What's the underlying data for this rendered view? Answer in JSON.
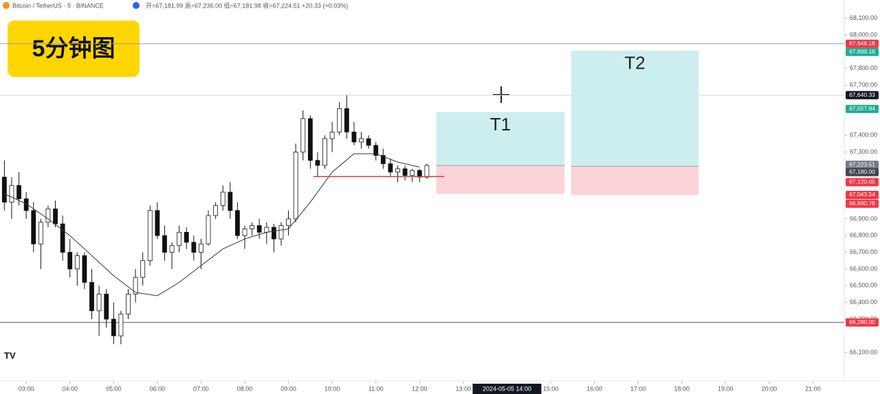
{
  "header": {
    "symbol": "Bitcoin / TetherUS · 5 · BINANCE",
    "ohlc": "开=67,181.99 高=67,236.00 低=67,181.98 收=67,224.51 +20.33 (+0.03%)",
    "badge": "5分钟图",
    "logo": "TV"
  },
  "chart_data": {
    "type": "candlestick",
    "up_color": "#ffffff",
    "down_color": "#111111",
    "xlim": [
      144,
      1303
    ],
    "ylim": [
      65930,
      68210
    ],
    "xticks": [
      {
        "value": 180,
        "label": "03:00"
      },
      {
        "value": 240,
        "label": "04:00"
      },
      {
        "value": 300,
        "label": "05:00"
      },
      {
        "value": 360,
        "label": "06:00"
      },
      {
        "value": 420,
        "label": "07:00"
      },
      {
        "value": 480,
        "label": "08:00"
      },
      {
        "value": 540,
        "label": "09:00"
      },
      {
        "value": 600,
        "label": "10:00"
      },
      {
        "value": 660,
        "label": "11:00"
      },
      {
        "value": 720,
        "label": "12:00"
      },
      {
        "value": 780,
        "label": "13:00"
      },
      {
        "value": 900,
        "label": "15:00"
      },
      {
        "value": 960,
        "label": "16:00"
      },
      {
        "value": 1020,
        "label": "17:00"
      },
      {
        "value": 1080,
        "label": "18:00"
      },
      {
        "value": 1140,
        "label": "19:00"
      },
      {
        "value": 1200,
        "label": "20:00"
      },
      {
        "value": 1260,
        "label": "21:00"
      }
    ],
    "crosshair_time": {
      "value": 840,
      "label": "2024-05-05 14:00"
    },
    "yticks": [
      {
        "value": 68100,
        "label": "68,100.00"
      },
      {
        "value": 68000,
        "label": "68,000.00"
      },
      {
        "value": 67800,
        "label": "67,800.00"
      },
      {
        "value": 67700,
        "label": "67,700.00"
      },
      {
        "value": 67400,
        "label": "67,400.00"
      },
      {
        "value": 67300,
        "label": "67,300.00"
      },
      {
        "value": 66900,
        "label": "66,900.00"
      },
      {
        "value": 66800,
        "label": "66,800.00"
      },
      {
        "value": 66700,
        "label": "66,700.00"
      },
      {
        "value": 66600,
        "label": "66,600.00"
      },
      {
        "value": 66500,
        "label": "66,500.00"
      },
      {
        "value": 66400,
        "label": "66,400.00"
      },
      {
        "value": 66300,
        "label": "66,300.00"
      },
      {
        "value": 66100,
        "label": "66,100.00"
      }
    ],
    "x": [
      150,
      160,
      170,
      180,
      190,
      200,
      210,
      220,
      230,
      240,
      250,
      260,
      270,
      280,
      290,
      300,
      310,
      320,
      330,
      340,
      350,
      360,
      370,
      380,
      390,
      400,
      410,
      420,
      430,
      440,
      450,
      460,
      470,
      480,
      490,
      500,
      510,
      520,
      530,
      540,
      550,
      560,
      570,
      580,
      590,
      600,
      610,
      620,
      630,
      640,
      650,
      660,
      670,
      680,
      690,
      700,
      710,
      720,
      730
    ],
    "open": [
      67150,
      67000,
      67100,
      67020,
      66950,
      66750,
      66880,
      66960,
      66870,
      66700,
      66600,
      66680,
      66520,
      66350,
      66450,
      66300,
      66200,
      66330,
      66450,
      66550,
      66650,
      66950,
      66800,
      66700,
      66740,
      66820,
      66760,
      66700,
      66750,
      66920,
      66980,
      67060,
      66950,
      66800,
      66840,
      66860,
      66820,
      66850,
      66780,
      66860,
      66900,
      67300,
      67500,
      67250,
      67220,
      67380,
      67420,
      67560,
      67420,
      67360,
      67380,
      67340,
      67280,
      67230,
      67180,
      67200,
      67160,
      67190,
      67150
    ],
    "high": [
      67250,
      67150,
      67180,
      67060,
      67000,
      66900,
      66980,
      67010,
      66920,
      66780,
      66700,
      66700,
      66600,
      66500,
      66480,
      66400,
      66350,
      66480,
      66600,
      66700,
      66980,
      67000,
      66860,
      66760,
      66860,
      66850,
      66800,
      66780,
      66950,
      67000,
      67100,
      67120,
      67000,
      66860,
      66880,
      66900,
      66880,
      66870,
      66880,
      66950,
      67350,
      67550,
      67520,
      67300,
      67400,
      67480,
      67600,
      67640,
      67480,
      67420,
      67400,
      67360,
      67320,
      67260,
      67220,
      67220,
      67200,
      67200,
      67230
    ],
    "low": [
      66950,
      66900,
      66980,
      66900,
      66700,
      66600,
      66850,
      66850,
      66650,
      66550,
      66500,
      66480,
      66300,
      66200,
      66250,
      66150,
      66150,
      66300,
      66400,
      66500,
      66620,
      66780,
      66650,
      66600,
      66700,
      66720,
      66650,
      66600,
      66740,
      66900,
      66950,
      66900,
      66780,
      66720,
      66800,
      66780,
      66750,
      66700,
      66740,
      66800,
      66880,
      67250,
      67200,
      67150,
      67200,
      67300,
      67400,
      67380,
      67340,
      67320,
      67320,
      67250,
      67200,
      67150,
      67120,
      67130,
      67120,
      67120,
      67140
    ],
    "close": [
      67000,
      67100,
      67020,
      66950,
      66750,
      66880,
      66960,
      66870,
      66700,
      66600,
      66680,
      66520,
      66350,
      66450,
      66300,
      66200,
      66330,
      66450,
      66550,
      66650,
      66950,
      66800,
      66700,
      66740,
      66820,
      66760,
      66700,
      66750,
      66920,
      66980,
      67060,
      66950,
      66800,
      66840,
      66860,
      66820,
      66850,
      66780,
      66860,
      66900,
      67300,
      67500,
      67250,
      67220,
      67380,
      67420,
      67560,
      67420,
      67360,
      67380,
      67340,
      67280,
      67230,
      67180,
      67200,
      67160,
      67190,
      67150,
      67220
    ],
    "ma": {
      "color": "#333333",
      "x": [
        150,
        180,
        210,
        240,
        270,
        300,
        330,
        360,
        390,
        420,
        450,
        480,
        510,
        540,
        570,
        600,
        630,
        660,
        690,
        720
      ],
      "values": [
        67050,
        66990,
        66900,
        66800,
        66680,
        66560,
        66460,
        66440,
        66520,
        66620,
        66720,
        66780,
        66820,
        66840,
        67000,
        67180,
        67290,
        67290,
        67240,
        67210
      ]
    },
    "levels": [
      {
        "price": 67948,
        "color": "#9aa0b0"
      },
      {
        "price": 67640,
        "color": "#d0d3dc"
      },
      {
        "price": 66280,
        "color": "#555555"
      }
    ],
    "segment": {
      "price": 67153,
      "start": 574,
      "end": 754,
      "color": "#e53935"
    },
    "positions": [
      {
        "label": "T1",
        "start": 743,
        "end": 919,
        "target": 67540,
        "entry": 67219,
        "stop": 67050
      },
      {
        "label": "T2",
        "start": 928,
        "end": 1103,
        "target": 67907,
        "entry": 67215,
        "stop": 67042
      }
    ],
    "target_color": "#cdeeee",
    "stop_color": "#f9d3d7",
    "price_tags": [
      {
        "value": 67948.18,
        "label": "67,948.18",
        "color": "#f23645"
      },
      {
        "value": 67899.18,
        "label": "67,899.18",
        "color": "#22ab94"
      },
      {
        "value": 67640.33,
        "label": "67,640.33",
        "color": "#131722"
      },
      {
        "value": 67557.94,
        "label": "67,557.94",
        "color": "#22ab94"
      },
      {
        "value": 67223.51,
        "label": "67,223.51",
        "color": "#787b86"
      },
      {
        "value": 67180,
        "label": "67,180.00",
        "color": "#434651"
      },
      {
        "value": 67120.05,
        "label": "67,120.05",
        "color": "#f23645"
      },
      {
        "value": 67043.54,
        "label": "67,043.54",
        "color": "#f23645"
      },
      {
        "value": 66990.78,
        "label": "66,990.78",
        "color": "#f23645"
      },
      {
        "value": 66280,
        "label": "66,280.00",
        "color": "#f23645"
      }
    ]
  }
}
